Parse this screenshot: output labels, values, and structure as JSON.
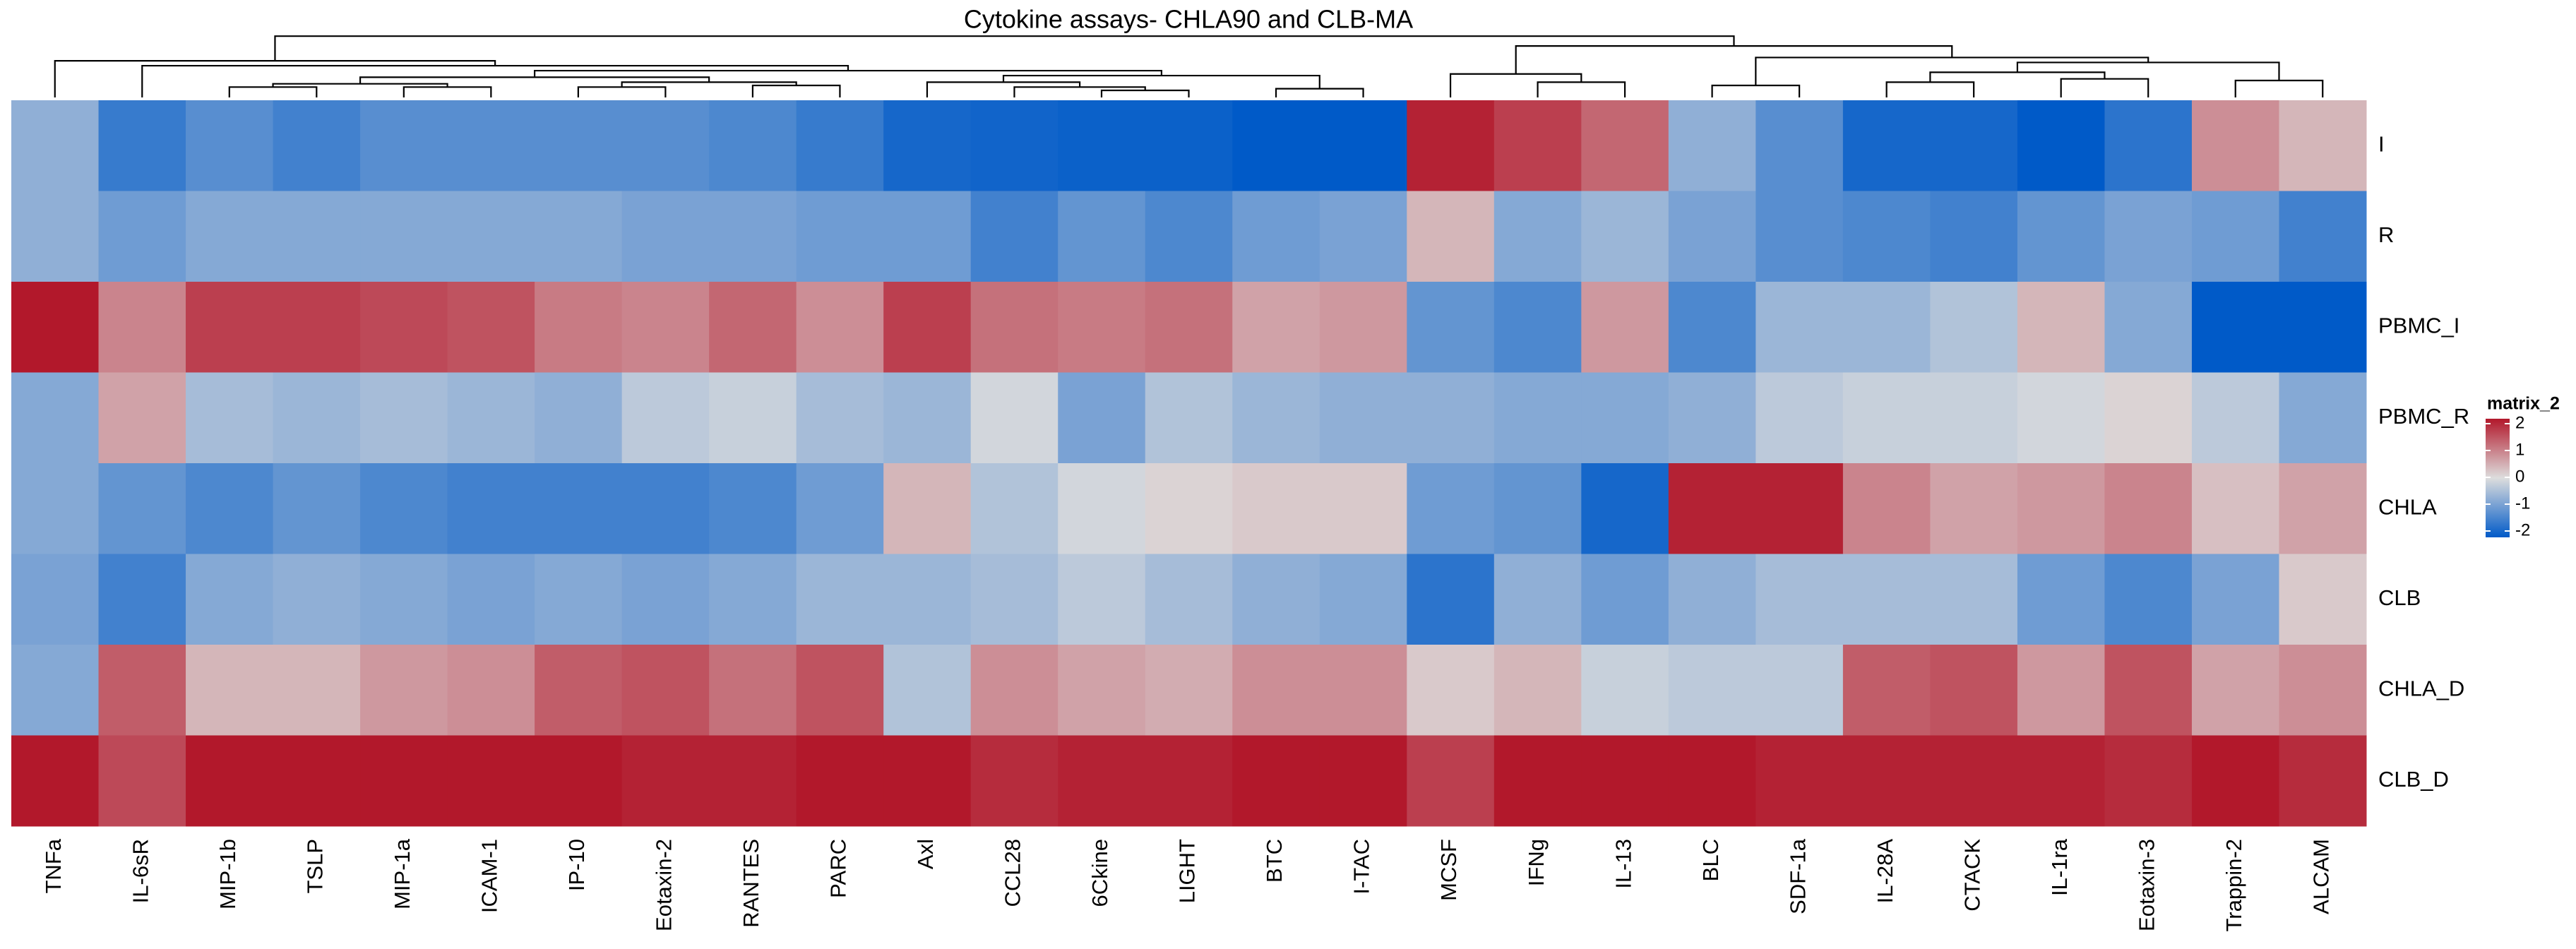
{
  "chart_data": {
    "type": "heatmap",
    "title": "Cytokine assays- CHLA90 and CLB-MA",
    "x_categories": [
      "TNFa",
      "IL-6sR",
      "MIP-1b",
      "TSLP",
      "MIP-1a",
      "ICAM-1",
      "IP-10",
      "Eotaxin-2",
      "RANTES",
      "PARC",
      "Axl",
      "CCL28",
      "6Ckine",
      "LIGHT",
      "BTC",
      "I-TAC",
      "MCSF",
      "IFNg",
      "IL-13",
      "BLC",
      "SDF-1a",
      "IL-28A",
      "CTACK",
      "IL-1ra",
      "Eotaxin-3",
      "Trappin-2",
      "ALCAM"
    ],
    "y_categories": [
      "I",
      "R",
      "PBMC_I",
      "PBMC_R",
      "CHLA",
      "CLB",
      "CHLA_D",
      "CLB_D"
    ],
    "values": [
      [
        -0.7,
        -1.5,
        -1.2,
        -1.4,
        -1.2,
        -1.2,
        -1.2,
        -1.2,
        -1.3,
        -1.5,
        -1.8,
        -1.85,
        -1.9,
        -1.9,
        -2,
        -2,
        1.9,
        1.6,
        1.2,
        -0.7,
        -1.2,
        -1.8,
        -1.8,
        -2,
        -1.6,
        0.8,
        0.4
      ],
      [
        -0.7,
        -1.0,
        -0.8,
        -0.8,
        -0.8,
        -0.8,
        -0.8,
        -0.9,
        -0.9,
        -1.0,
        -1.0,
        -1.4,
        -1.1,
        -1.3,
        -1.0,
        -0.9,
        0.4,
        -0.8,
        -0.6,
        -0.9,
        -1.2,
        -1.3,
        -1.4,
        -1.1,
        -0.9,
        -1.0,
        -1.4
      ],
      [
        2,
        0.9,
        1.6,
        1.6,
        1.5,
        1.4,
        1.0,
        0.9,
        1.2,
        0.8,
        1.6,
        1.1,
        1.0,
        1.1,
        0.6,
        0.7,
        -1.1,
        -1.3,
        0.7,
        -1.3,
        -0.6,
        -0.6,
        -0.4,
        0.4,
        -0.8,
        -2,
        -2
      ],
      [
        -0.8,
        0.6,
        -0.5,
        -0.6,
        -0.5,
        -0.6,
        -0.7,
        -0.3,
        -0.2,
        -0.5,
        -0.6,
        -0.1,
        -0.9,
        -0.4,
        -0.6,
        -0.7,
        -0.7,
        -0.8,
        -0.8,
        -0.7,
        -0.3,
        -0.2,
        -0.2,
        -0.1,
        0.1,
        -0.3,
        -0.8
      ],
      [
        -0.8,
        -1.1,
        -1.3,
        -1.1,
        -1.3,
        -1.4,
        -1.4,
        -1.4,
        -1.3,
        -1.0,
        0.4,
        -0.4,
        -0.1,
        0.1,
        0.2,
        0.2,
        -1.0,
        -1.1,
        -1.8,
        1.9,
        1.9,
        0.9,
        0.6,
        0.7,
        0.9,
        0.3,
        0.6
      ],
      [
        -0.9,
        -1.4,
        -0.8,
        -0.7,
        -0.8,
        -0.9,
        -0.8,
        -0.9,
        -0.8,
        -0.6,
        -0.6,
        -0.5,
        -0.3,
        -0.5,
        -0.7,
        -0.8,
        -1.6,
        -0.7,
        -1.0,
        -0.7,
        -0.5,
        -0.5,
        -0.5,
        -1.0,
        -1.3,
        -0.9,
        0.2
      ],
      [
        -0.8,
        1.3,
        0.4,
        0.4,
        0.7,
        0.8,
        1.3,
        1.4,
        1.1,
        1.4,
        -0.4,
        0.8,
        0.6,
        0.5,
        0.8,
        0.8,
        0.2,
        0.4,
        -0.2,
        -0.3,
        -0.3,
        1.3,
        1.4,
        0.7,
        1.4,
        0.6,
        0.8
      ],
      [
        2,
        1.5,
        2,
        2,
        2,
        2,
        2,
        1.9,
        1.9,
        2,
        2,
        1.8,
        1.9,
        1.9,
        2,
        2,
        1.6,
        2,
        2,
        2,
        1.9,
        1.9,
        1.9,
        1.9,
        1.8,
        2,
        1.8
      ]
    ],
    "clim": [
      -2,
      2
    ],
    "colors": [
      "#005ac8",
      "#dddddd",
      "#b2182b"
    ],
    "legend_title": "matrix_2",
    "legend_ticks": [
      2,
      1,
      0,
      -1,
      -2
    ]
  }
}
